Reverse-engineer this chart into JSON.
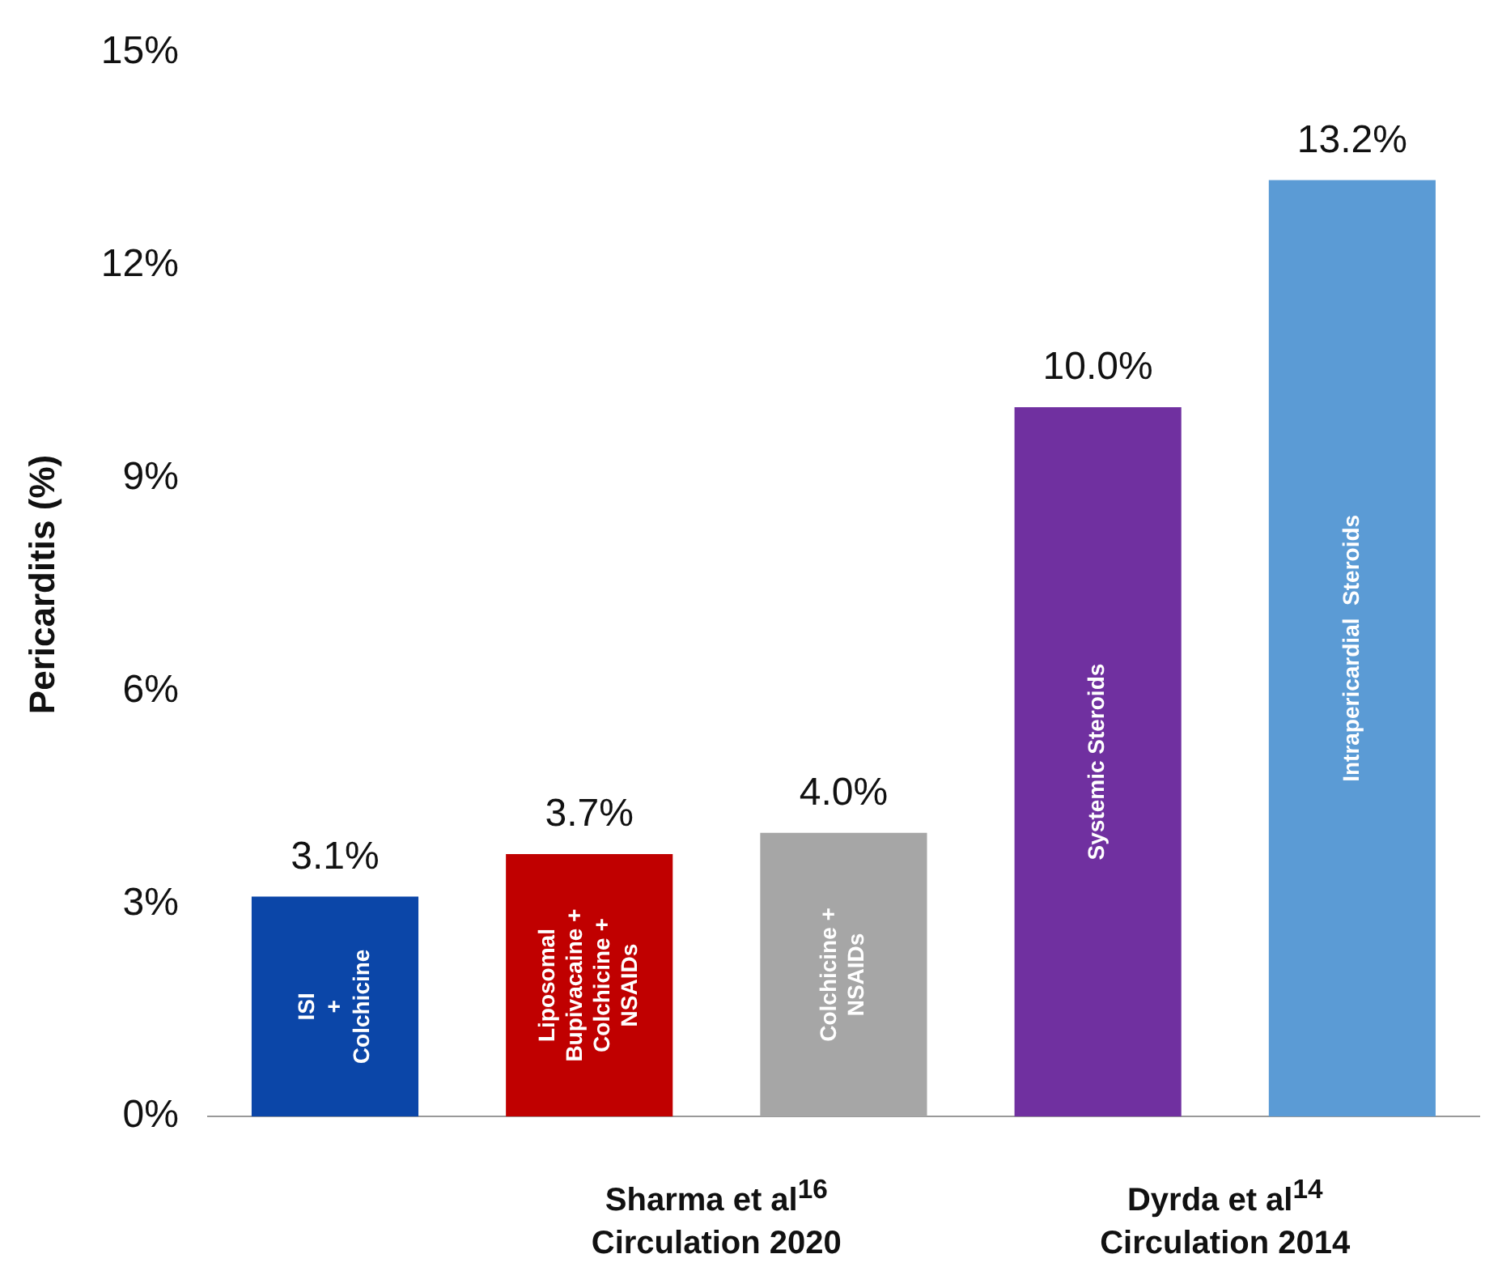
{
  "chart_data": {
    "type": "bar",
    "ylabel": "Pericarditis (%)",
    "categories": [
      "ISI\n+\nColchicine",
      "Liposomal\nBupivacaine +\nColchicine +\nNSAIDs",
      "Colchicine +\nNSAIDs",
      "Systemic Steroids",
      "Intrapericardial  Steroids"
    ],
    "values": [
      3.1,
      3.7,
      4.0,
      10.0,
      13.2
    ],
    "colors": [
      "#0b46a8",
      "#c00000",
      "#a6a6a6",
      "#7030a0",
      "#5b9bd5"
    ],
    "value_labels": [
      "3.1%",
      "3.7%",
      "4.0%",
      "10.0%",
      "13.2%"
    ],
    "ylim": [
      0,
      15
    ],
    "yticks": [
      {
        "value": 0,
        "label": "0%"
      },
      {
        "value": 3,
        "label": "3%"
      },
      {
        "value": 6,
        "label": "6%"
      },
      {
        "value": 9,
        "label": "9%"
      },
      {
        "value": 12,
        "label": "12%"
      },
      {
        "value": 15,
        "label": "15%"
      }
    ],
    "grid": false,
    "legend": false,
    "annotations": [
      "Sharma et al$^{16}$\nCirculation 2020",
      "Dyrda et al$^{14}$\nCirculation 2014"
    ]
  }
}
